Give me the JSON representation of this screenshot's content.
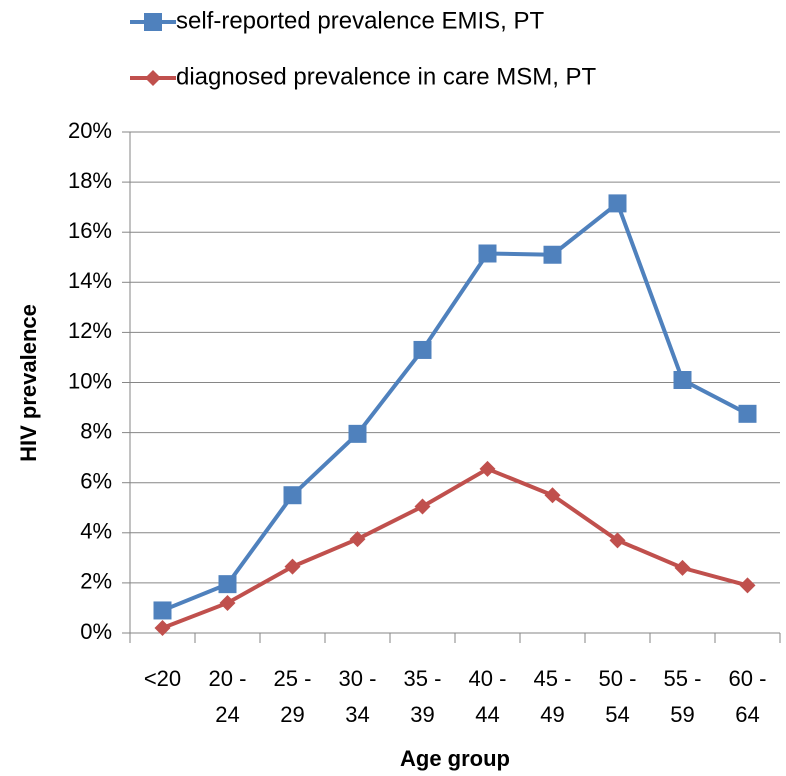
{
  "chart_data": {
    "type": "line",
    "ylabel": "HIV prevalence",
    "xlabel": "Age group",
    "categories": [
      "<20",
      "20 - 24",
      "25 - 29",
      "30 - 34",
      "35 - 39",
      "40 - 44",
      "45 - 49",
      "50 - 54",
      "55 - 59",
      "60 - 64"
    ],
    "series": [
      {
        "name": "self-reported prevalence EMIS, PT",
        "color": "#4f81bd",
        "marker": "square",
        "values": [
          0.9,
          1.95,
          5.5,
          7.95,
          11.3,
          15.15,
          15.1,
          17.15,
          10.1,
          8.75
        ]
      },
      {
        "name": "diagnosed prevalence in care MSM, PT",
        "color": "#c0504d",
        "marker": "diamond",
        "values": [
          0.2,
          1.2,
          2.65,
          3.75,
          5.05,
          6.55,
          5.5,
          3.7,
          2.6,
          1.9
        ]
      }
    ],
    "ylim": [
      0,
      20
    ],
    "yticks": [
      {
        "value": 0,
        "label": "0%"
      },
      {
        "value": 2,
        "label": "2%"
      },
      {
        "value": 4,
        "label": "4%"
      },
      {
        "value": 6,
        "label": "6%"
      },
      {
        "value": 8,
        "label": "8%"
      },
      {
        "value": 10,
        "label": "10%"
      },
      {
        "value": 12,
        "label": "12%"
      },
      {
        "value": 14,
        "label": "14%"
      },
      {
        "value": 16,
        "label": "16%"
      },
      {
        "value": 18,
        "label": "18%"
      },
      {
        "value": 20,
        "label": "20%"
      }
    ],
    "grid": true,
    "legend": "top"
  }
}
